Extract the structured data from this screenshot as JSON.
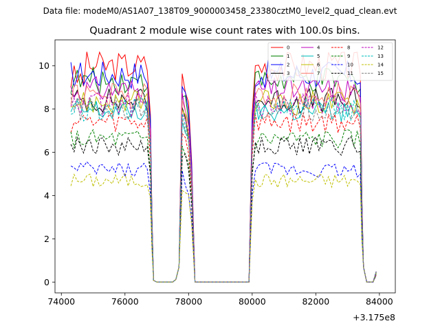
{
  "suptitle": "Data file: modeM0/AS1A07_138T09_9000003458_23380cztM0_level2_quad_clean.evt",
  "chart_data": {
    "type": "line",
    "title": "Quadrant 2 module wise count rates with 100.0s bins.",
    "xlabel": "",
    "ylabel": "",
    "x_offset_label": "+3.175e8",
    "xlim": [
      73800,
      84500
    ],
    "ylim": [
      -0.5,
      11.2
    ],
    "xticks": [
      74000,
      76000,
      78000,
      80000,
      82000,
      84000
    ],
    "xtick_labels": [
      "74000",
      "76000",
      "78000",
      "80000",
      "82000",
      "84000"
    ],
    "yticks": [
      0,
      2,
      4,
      6,
      8,
      10
    ],
    "ytick_labels": [
      "0",
      "2",
      "4",
      "6",
      "8",
      "10"
    ],
    "legend_position": "top-right",
    "series": [
      {
        "name": "0",
        "color": "#ff0000",
        "dash": "solid",
        "level": 10.0
      },
      {
        "name": "1",
        "color": "#008000",
        "dash": "solid",
        "level": 9.3
      },
      {
        "name": "2",
        "color": "#0000ff",
        "dash": "solid",
        "level": 9.6
      },
      {
        "name": "3",
        "color": "#000000",
        "dash": "solid",
        "level": 8.4
      },
      {
        "name": "4",
        "color": "#bf00bf",
        "dash": "solid",
        "level": 8.9
      },
      {
        "name": "5",
        "color": "#00bfbf",
        "dash": "solid",
        "level": 7.9
      },
      {
        "name": "6",
        "color": "#bfbf00",
        "dash": "solid",
        "level": 8.3
      },
      {
        "name": "7",
        "color": "#fa8072",
        "dash": "solid",
        "level": 8.6
      },
      {
        "name": "8",
        "color": "#ff0000",
        "dash": "dashed",
        "level": 7.4
      },
      {
        "name": "9",
        "color": "#008000",
        "dash": "dashed",
        "level": 6.6
      },
      {
        "name": "10",
        "color": "#0000ff",
        "dash": "dashed",
        "level": 5.2
      },
      {
        "name": "11",
        "color": "#000000",
        "dash": "dashed",
        "level": 6.3
      },
      {
        "name": "12",
        "color": "#bf00bf",
        "dash": "dashed",
        "level": 8.2
      },
      {
        "name": "13",
        "color": "#00bfbf",
        "dash": "dashed",
        "level": 8.0
      },
      {
        "name": "14",
        "color": "#bfbf00",
        "dash": "dashed",
        "level": 4.7
      },
      {
        "name": "15",
        "color": "#808080",
        "dash": "dashed",
        "level": 8.0
      }
    ],
    "time_bins": {
      "bin_seconds": 100,
      "active_segments": [
        [
          74300,
          76800
        ],
        [
          80000,
          83400
        ]
      ],
      "transitions": [
        [
          76800,
          76900
        ],
        [
          77700,
          78200
        ],
        [
          83400,
          83900
        ]
      ],
      "peak_segment": [
        77800,
        78000
      ],
      "gap_segments": [
        [
          76900,
          77700
        ],
        [
          78200,
          80000
        ],
        [
          83600,
          83900
        ]
      ]
    }
  }
}
